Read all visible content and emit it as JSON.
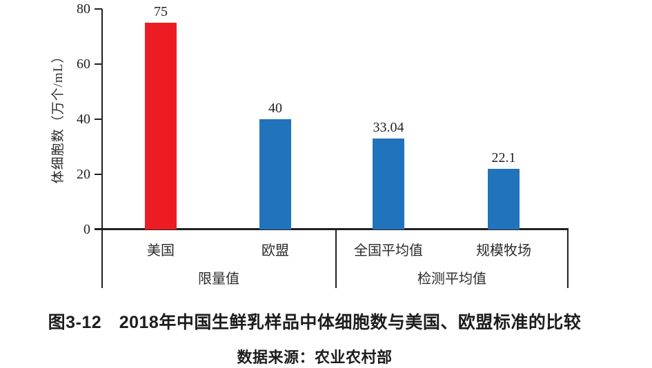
{
  "figure": {
    "caption": "图3-12　2018年中国生鲜乳样品中体细胞数与美国、欧盟标准的比较",
    "source": "数据来源：农业农村部"
  },
  "chart_data": {
    "type": "bar",
    "title": "",
    "xlabel": "",
    "ylabel": "体细胞数（万个/mL）",
    "ylim": [
      0,
      80
    ],
    "yticks": [
      "0",
      "20",
      "40",
      "60",
      "80"
    ],
    "grid": false,
    "legend": "none",
    "categories": [
      "美国",
      "欧盟",
      "全国平均值",
      "规模牧场"
    ],
    "values": [
      75,
      40,
      33.04,
      22.1
    ],
    "value_labels": [
      "75",
      "40",
      "33.04",
      "22.1"
    ],
    "bar_colors": [
      "#ed1c24",
      "#2173bc",
      "#2173bc",
      "#2173bc"
    ],
    "groups": [
      {
        "label": "限量值",
        "members": [
          "美国",
          "欧盟"
        ]
      },
      {
        "label": "检测平均值",
        "members": [
          "全国平均值",
          "规模牧场"
        ]
      }
    ],
    "colors": {
      "limit_bar_red": "#ed1c24",
      "measured_bar_blue": "#2173bc",
      "axis_black": "#231f20"
    }
  }
}
